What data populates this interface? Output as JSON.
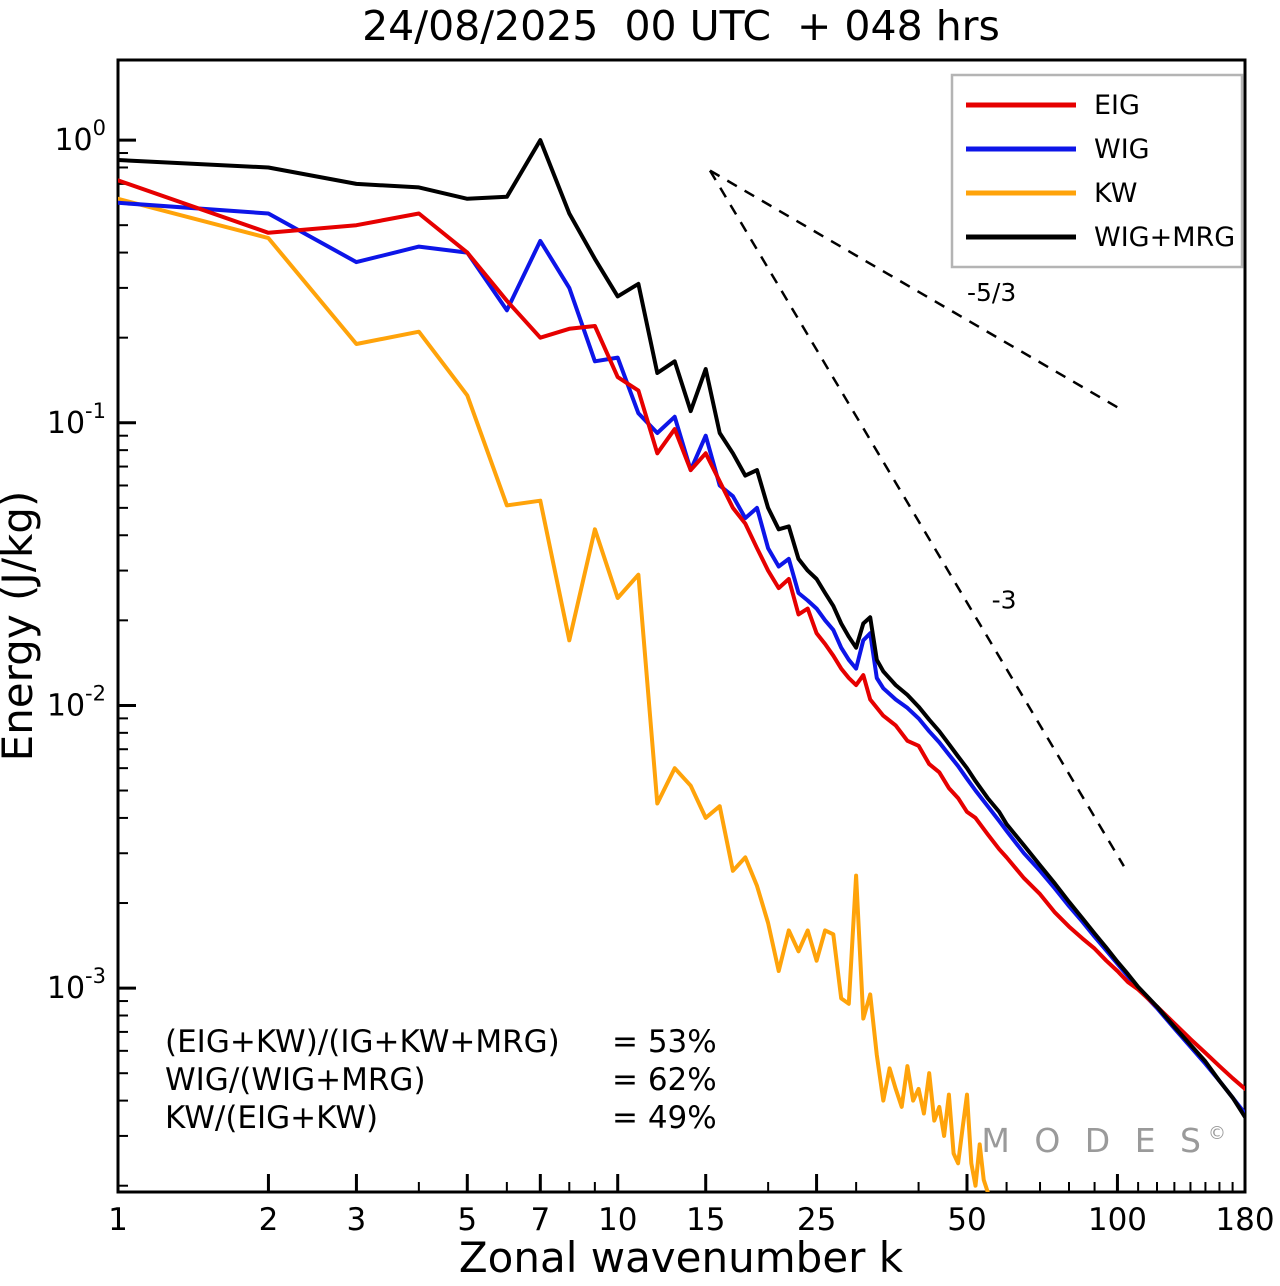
{
  "watermark": {
    "text": "M O D E S",
    "symbol": "©"
  },
  "stats": {
    "rows": [
      {
        "expr": "(EIG+KW)/(IG+KW+MRG)",
        "value": "= 53%"
      },
      {
        "expr": "WIG/(WIG+MRG)",
        "value": "= 62%"
      },
      {
        "expr": "KW/(EIG+KW)",
        "value": "= 49%"
      }
    ]
  },
  "chart_data": {
    "type": "line",
    "title": "24/08/2025  00 UTC  + 048 hrs",
    "xlabel": "Zonal wavenumber k",
    "ylabel": "Energy (J/kg)",
    "xscale": "log",
    "yscale": "log",
    "xlim": [
      1,
      180
    ],
    "ylim": [
      0.00019,
      1.92
    ],
    "x_ticks": [
      1,
      2,
      3,
      5,
      7,
      10,
      15,
      25,
      50,
      100,
      180
    ],
    "x_minor_ticks": [
      4,
      6,
      8,
      9,
      20,
      30,
      40,
      60,
      70,
      80,
      90,
      110,
      120,
      130,
      140,
      150,
      160,
      170
    ],
    "y_tick_exponents": [
      0,
      -1,
      -2,
      -3
    ],
    "legend_position": "top-right",
    "grid": false,
    "reference_lines": [
      {
        "label": "-5/3",
        "from": [
          15.3,
          0.78
        ],
        "to": [
          103,
          0.11
        ],
        "label_pos": [
          50,
          0.27
        ]
      },
      {
        "label": "-3",
        "from": [
          15.3,
          0.78
        ],
        "to": [
          103,
          0.0027
        ],
        "label_pos": [
          56,
          0.022
        ]
      }
    ],
    "series": [
      {
        "name": "EIG",
        "color": "#e60000",
        "z": 3,
        "points": [
          [
            1,
            0.72
          ],
          [
            2,
            0.47
          ],
          [
            3,
            0.5
          ],
          [
            4,
            0.55
          ],
          [
            5,
            0.4
          ],
          [
            6,
            0.27
          ],
          [
            7,
            0.2
          ],
          [
            8,
            0.215
          ],
          [
            9,
            0.22
          ],
          [
            10,
            0.145
          ],
          [
            11,
            0.13
          ],
          [
            12,
            0.078
          ],
          [
            13,
            0.095
          ],
          [
            14,
            0.068
          ],
          [
            15,
            0.078
          ],
          [
            16,
            0.062
          ],
          [
            17,
            0.05
          ],
          [
            18,
            0.044
          ],
          [
            19,
            0.036
          ],
          [
            20,
            0.03
          ],
          [
            21,
            0.026
          ],
          [
            22,
            0.028
          ],
          [
            23,
            0.021
          ],
          [
            24,
            0.022
          ],
          [
            25,
            0.018
          ],
          [
            26,
            0.0165
          ],
          [
            27,
            0.015
          ],
          [
            28,
            0.0135
          ],
          [
            29,
            0.0125
          ],
          [
            30,
            0.0118
          ],
          [
            31,
            0.0128
          ],
          [
            32,
            0.0105
          ],
          [
            34,
            0.0092
          ],
          [
            36,
            0.0085
          ],
          [
            38,
            0.0075
          ],
          [
            40,
            0.0072
          ],
          [
            42,
            0.0062
          ],
          [
            44,
            0.0058
          ],
          [
            46,
            0.0051
          ],
          [
            48,
            0.0047
          ],
          [
            50,
            0.0042
          ],
          [
            52,
            0.004
          ],
          [
            55,
            0.0035
          ],
          [
            58,
            0.0031
          ],
          [
            60,
            0.0029
          ],
          [
            65,
            0.00245
          ],
          [
            70,
            0.00215
          ],
          [
            75,
            0.00185
          ],
          [
            80,
            0.00165
          ],
          [
            85,
            0.0015
          ],
          [
            90,
            0.00138
          ],
          [
            95,
            0.00125
          ],
          [
            100,
            0.00115
          ],
          [
            105,
            0.00105
          ],
          [
            110,
            0.00099
          ],
          [
            115,
            0.00092
          ],
          [
            120,
            0.00086
          ],
          [
            130,
            0.00075
          ],
          [
            140,
            0.00066
          ],
          [
            150,
            0.00059
          ],
          [
            160,
            0.00053
          ],
          [
            170,
            0.00048
          ],
          [
            180,
            0.00044
          ]
        ]
      },
      {
        "name": "WIG",
        "color": "#0d15e8",
        "z": 2,
        "points": [
          [
            1,
            0.6
          ],
          [
            2,
            0.55
          ],
          [
            3,
            0.37
          ],
          [
            4,
            0.42
          ],
          [
            5,
            0.4
          ],
          [
            6,
            0.25
          ],
          [
            7,
            0.44
          ],
          [
            8,
            0.3
          ],
          [
            9,
            0.165
          ],
          [
            10,
            0.17
          ],
          [
            11,
            0.108
          ],
          [
            12,
            0.092
          ],
          [
            13,
            0.105
          ],
          [
            14,
            0.068
          ],
          [
            15,
            0.09
          ],
          [
            16,
            0.06
          ],
          [
            17,
            0.055
          ],
          [
            18,
            0.046
          ],
          [
            19,
            0.05
          ],
          [
            20,
            0.036
          ],
          [
            21,
            0.031
          ],
          [
            22,
            0.033
          ],
          [
            23,
            0.025
          ],
          [
            24,
            0.0235
          ],
          [
            25,
            0.022
          ],
          [
            26,
            0.02
          ],
          [
            27,
            0.0185
          ],
          [
            28,
            0.016
          ],
          [
            29,
            0.0145
          ],
          [
            30,
            0.0135
          ],
          [
            31,
            0.017
          ],
          [
            32,
            0.018
          ],
          [
            33,
            0.0125
          ],
          [
            34,
            0.0115
          ],
          [
            36,
            0.0105
          ],
          [
            38,
            0.0098
          ],
          [
            40,
            0.009
          ],
          [
            42,
            0.0081
          ],
          [
            44,
            0.0074
          ],
          [
            46,
            0.0067
          ],
          [
            48,
            0.0061
          ],
          [
            50,
            0.0055
          ],
          [
            52,
            0.005
          ],
          [
            55,
            0.0044
          ],
          [
            58,
            0.0039
          ],
          [
            60,
            0.0036
          ],
          [
            65,
            0.003
          ],
          [
            70,
            0.0026
          ],
          [
            75,
            0.00225
          ],
          [
            80,
            0.00195
          ],
          [
            85,
            0.00172
          ],
          [
            90,
            0.00152
          ],
          [
            95,
            0.00136
          ],
          [
            100,
            0.00122
          ],
          [
            105,
            0.0011
          ],
          [
            110,
            0.001
          ],
          [
            115,
            0.00092
          ],
          [
            120,
            0.00085
          ],
          [
            130,
            0.00072
          ],
          [
            140,
            0.00062
          ],
          [
            150,
            0.00054
          ],
          [
            160,
            0.00047
          ],
          [
            170,
            0.00041
          ],
          [
            180,
            0.00036
          ]
        ]
      },
      {
        "name": "KW",
        "color": "#ffa30a",
        "z": 1,
        "points": [
          [
            1,
            0.62
          ],
          [
            2,
            0.45
          ],
          [
            3,
            0.19
          ],
          [
            4,
            0.21
          ],
          [
            5,
            0.125
          ],
          [
            6,
            0.051
          ],
          [
            7,
            0.053
          ],
          [
            8,
            0.017
          ],
          [
            9,
            0.042
          ],
          [
            10,
            0.024
          ],
          [
            11,
            0.029
          ],
          [
            12,
            0.0045
          ],
          [
            13,
            0.006
          ],
          [
            14,
            0.0052
          ],
          [
            15,
            0.004
          ],
          [
            16,
            0.0044
          ],
          [
            17,
            0.0026
          ],
          [
            18,
            0.0029
          ],
          [
            19,
            0.0023
          ],
          [
            20,
            0.0017
          ],
          [
            21,
            0.00115
          ],
          [
            22,
            0.0016
          ],
          [
            23,
            0.00135
          ],
          [
            24,
            0.0016
          ],
          [
            25,
            0.00125
          ],
          [
            26,
            0.0016
          ],
          [
            27,
            0.00155
          ],
          [
            28,
            0.00092
          ],
          [
            29,
            0.00088
          ],
          [
            30,
            0.0025
          ],
          [
            31,
            0.00078
          ],
          [
            32,
            0.00095
          ],
          [
            33,
            0.00058
          ],
          [
            34,
            0.0004
          ],
          [
            35,
            0.00052
          ],
          [
            36,
            0.00044
          ],
          [
            37,
            0.00038
          ],
          [
            38,
            0.00053
          ],
          [
            39,
            0.0004
          ],
          [
            40,
            0.00044
          ],
          [
            41,
            0.00036
          ],
          [
            42,
            0.0005
          ],
          [
            43,
            0.00034
          ],
          [
            44,
            0.00038
          ],
          [
            45,
            0.0003
          ],
          [
            46,
            0.00042
          ],
          [
            47,
            0.00026
          ],
          [
            48,
            0.00024
          ],
          [
            49,
            0.00032
          ],
          [
            50,
            0.00042
          ],
          [
            51,
            0.00024
          ],
          [
            52,
            0.0002
          ],
          [
            53,
            0.00028
          ],
          [
            54,
            0.00021
          ],
          [
            55,
            0.00019
          ]
        ]
      },
      {
        "name": "WIG+MRG",
        "color": "#000000",
        "z": 4,
        "points": [
          [
            1,
            0.85
          ],
          [
            2,
            0.8
          ],
          [
            3,
            0.7
          ],
          [
            4,
            0.68
          ],
          [
            5,
            0.62
          ],
          [
            6,
            0.63
          ],
          [
            7,
            1.0
          ],
          [
            8,
            0.55
          ],
          [
            9,
            0.38
          ],
          [
            10,
            0.28
          ],
          [
            11,
            0.31
          ],
          [
            12,
            0.15
          ],
          [
            13,
            0.165
          ],
          [
            14,
            0.11
          ],
          [
            15,
            0.155
          ],
          [
            16,
            0.092
          ],
          [
            17,
            0.078
          ],
          [
            18,
            0.065
          ],
          [
            19,
            0.068
          ],
          [
            20,
            0.05
          ],
          [
            21,
            0.042
          ],
          [
            22,
            0.043
          ],
          [
            23,
            0.033
          ],
          [
            24,
            0.03
          ],
          [
            25,
            0.028
          ],
          [
            26,
            0.025
          ],
          [
            27,
            0.0225
          ],
          [
            28,
            0.0195
          ],
          [
            29,
            0.0175
          ],
          [
            30,
            0.016
          ],
          [
            31,
            0.0195
          ],
          [
            32,
            0.0205
          ],
          [
            33,
            0.0145
          ],
          [
            34,
            0.0132
          ],
          [
            36,
            0.0118
          ],
          [
            38,
            0.0109
          ],
          [
            40,
            0.0099
          ],
          [
            42,
            0.0089
          ],
          [
            44,
            0.0081
          ],
          [
            46,
            0.0073
          ],
          [
            48,
            0.0066
          ],
          [
            50,
            0.006
          ],
          [
            52,
            0.0054
          ],
          [
            55,
            0.0047
          ],
          [
            58,
            0.0042
          ],
          [
            60,
            0.0038
          ],
          [
            65,
            0.0032
          ],
          [
            70,
            0.00272
          ],
          [
            75,
            0.00234
          ],
          [
            80,
            0.00202
          ],
          [
            85,
            0.00177
          ],
          [
            90,
            0.00156
          ],
          [
            95,
            0.00139
          ],
          [
            100,
            0.00124
          ],
          [
            105,
            0.00112
          ],
          [
            110,
            0.00101
          ],
          [
            115,
            0.00093
          ],
          [
            120,
            0.00086
          ],
          [
            130,
            0.00073
          ],
          [
            140,
            0.00063
          ],
          [
            150,
            0.00055
          ],
          [
            160,
            0.00047
          ],
          [
            170,
            0.00041
          ],
          [
            180,
            0.00035
          ]
        ]
      }
    ]
  }
}
